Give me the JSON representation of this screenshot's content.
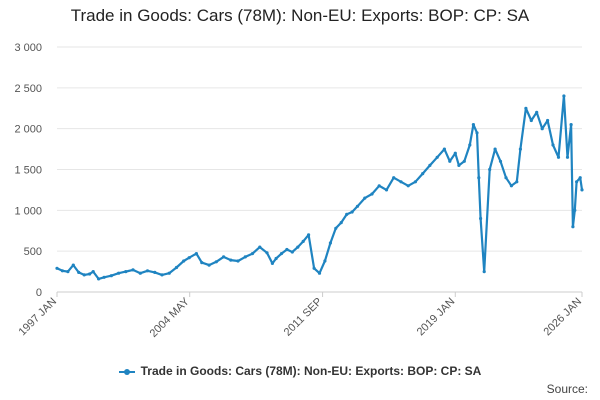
{
  "chart_data": {
    "type": "line",
    "title": "Trade in Goods: Cars (78M): Non-EU: Exports: BOP: CP: SA",
    "xlabel": "",
    "ylabel": "",
    "ylim": [
      0,
      3000
    ],
    "yticks": [
      0,
      500,
      1000,
      1500,
      2000,
      2500,
      3000
    ],
    "ytick_labels": [
      "0",
      "500",
      "1 000",
      "1 500",
      "2 000",
      "2 500",
      "3 000"
    ],
    "x_range": [
      1997.0,
      2026.0
    ],
    "xticks": [
      {
        "label": "1997 JAN",
        "x": 1997.0
      },
      {
        "label": "2004 MAY",
        "x": 2004.33
      },
      {
        "label": "2011 SEP",
        "x": 2011.67
      },
      {
        "label": "2019 JAN",
        "x": 2019.0
      },
      {
        "label": "2026 JAN",
        "x": 2026.0
      }
    ],
    "legend_position": "bottom",
    "series": [
      {
        "name": "Trade in Goods: Cars (78M): Non-EU: Exports: BOP: CP: SA",
        "color": "#1f84c1",
        "x": [
          1997.0,
          1997.3,
          1997.6,
          1997.9,
          1998.2,
          1998.5,
          1998.8,
          1999.0,
          1999.3,
          1999.6,
          2000.0,
          2000.4,
          2000.8,
          2001.2,
          2001.6,
          2002.0,
          2002.4,
          2002.8,
          2003.2,
          2003.6,
          2004.0,
          2004.3,
          2004.7,
          2005.0,
          2005.4,
          2005.8,
          2006.2,
          2006.6,
          2007.0,
          2007.4,
          2007.8,
          2008.2,
          2008.6,
          2008.9,
          2009.1,
          2009.4,
          2009.7,
          2010.0,
          2010.3,
          2010.6,
          2010.9,
          2011.2,
          2011.5,
          2011.8,
          2012.1,
          2012.4,
          2012.7,
          2013.0,
          2013.3,
          2013.6,
          2014.0,
          2014.4,
          2014.8,
          2015.2,
          2015.6,
          2016.0,
          2016.4,
          2016.8,
          2017.2,
          2017.6,
          2018.0,
          2018.4,
          2018.7,
          2019.0,
          2019.2,
          2019.5,
          2019.8,
          2020.0,
          2020.2,
          2020.3,
          2020.4,
          2020.6,
          2020.9,
          2021.2,
          2021.5,
          2021.8,
          2022.1,
          2022.4,
          2022.6,
          2022.9,
          2023.2,
          2023.5,
          2023.8,
          2024.1,
          2024.4,
          2024.7,
          2025.0,
          2025.2,
          2025.4,
          2025.5,
          2025.6,
          2025.7,
          2025.9,
          2026.0
        ],
        "values": [
          290,
          260,
          250,
          330,
          240,
          210,
          220,
          250,
          160,
          180,
          200,
          230,
          250,
          270,
          230,
          260,
          240,
          210,
          230,
          300,
          380,
          420,
          470,
          360,
          330,
          370,
          430,
          390,
          380,
          430,
          470,
          550,
          480,
          350,
          410,
          470,
          520,
          490,
          550,
          620,
          700,
          290,
          230,
          380,
          600,
          780,
          850,
          950,
          980,
          1050,
          1150,
          1200,
          1300,
          1250,
          1400,
          1350,
          1300,
          1350,
          1450,
          1550,
          1650,
          1750,
          1600,
          1700,
          1550,
          1600,
          1800,
          2050,
          1950,
          1400,
          900,
          250,
          1500,
          1750,
          1600,
          1400,
          1300,
          1350,
          1750,
          2250,
          2100,
          2200,
          2000,
          2100,
          1800,
          1650,
          2400,
          1650,
          2050,
          800,
          1000,
          1350,
          1400,
          1250
        ]
      }
    ]
  },
  "legend": {
    "label": "Trade in Goods: Cars (78M): Non-EU: Exports: BOP: CP: SA"
  },
  "source": {
    "label": "Source:"
  }
}
